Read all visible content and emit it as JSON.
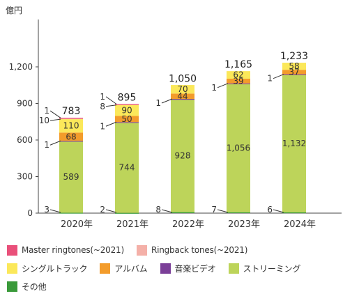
{
  "chart_data": {
    "type": "bar",
    "stacked": true,
    "unit_label": "億円",
    "categories": [
      "2020年",
      "2021年",
      "2022年",
      "2023年",
      "2024年"
    ],
    "yticks": [
      "0",
      "300",
      "600",
      "900",
      "1,200"
    ],
    "ylim": [
      0,
      1400
    ],
    "grid": false,
    "legend_position": "bottom",
    "totals": [
      783,
      895,
      1050,
      1165,
      1233
    ],
    "totals_labels": [
      "783",
      "895",
      "1,050",
      "1,165",
      "1,233"
    ],
    "series": [
      {
        "name": "その他",
        "color": "#3a9a3a",
        "values": [
          3,
          2,
          8,
          7,
          6
        ]
      },
      {
        "name": "ストリーミング",
        "color": "#bdd45a",
        "values": [
          589,
          744,
          928,
          1056,
          1132
        ],
        "labels": [
          "589",
          "744",
          "928",
          "1,056",
          "1,132"
        ]
      },
      {
        "name": "音楽ビデオ",
        "color": "#7b3f98",
        "values": [
          1,
          1,
          1,
          1,
          1
        ]
      },
      {
        "name": "アルバム",
        "color": "#f39c2b",
        "values": [
          68,
          50,
          44,
          39,
          37
        ]
      },
      {
        "name": "シングルトラック",
        "color": "#fbe85a",
        "values": [
          110,
          90,
          70,
          62,
          58
        ]
      },
      {
        "name": "Ringback tones(~2021)",
        "color": "#f4b0a8",
        "values": [
          10,
          8,
          0,
          0,
          0
        ]
      },
      {
        "name": "Master ringtones(~2021)",
        "color": "#e9507a",
        "values": [
          1,
          1,
          0,
          0,
          0
        ]
      }
    ]
  },
  "legend": [
    [
      {
        "label": "Master ringtones(~2021)",
        "color": "#e9507a"
      },
      {
        "label": "Ringback tones(~2021)",
        "color": "#f4b0a8"
      }
    ],
    [
      {
        "label": "シングルトラック",
        "color": "#fbe85a"
      },
      {
        "label": "アルバム",
        "color": "#f39c2b"
      },
      {
        "label": "音楽ビデオ",
        "color": "#7b3f98"
      },
      {
        "label": "ストリーミング",
        "color": "#bdd45a"
      }
    ],
    [
      {
        "label": "その他",
        "color": "#3a9a3a"
      }
    ]
  ]
}
